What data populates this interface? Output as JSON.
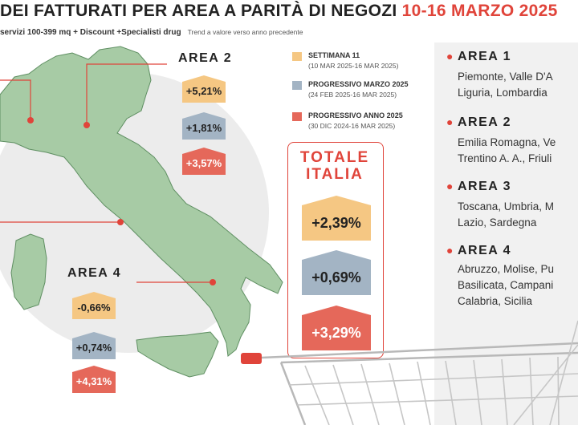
{
  "title": {
    "main": "DEI FATTURATI PER AREA A PARITÀ DI NEGOZI",
    "dates": "10-16 MARZO 2025"
  },
  "subtitle": {
    "text": "servizi 100-399 mq + Discount +Specialisti drug",
    "note": "Trend a valore verso anno precedente"
  },
  "legend": [
    {
      "title": "SETTIMANA 11",
      "sub": "(10 MAR 2025-16 MAR 2025)",
      "color": "#f5c783"
    },
    {
      "title": "PROGRESSIVO MARZO 2025",
      "sub": "(24 FEB 2025-16 MAR 2025)",
      "color": "#a3b4c4"
    },
    {
      "title": "PROGRESSIVO ANNO 2025",
      "sub": "(30 DIC 2024-16 MAR 2025)",
      "color": "#e5685a"
    }
  ],
  "map_areas": {
    "area2": {
      "label": "AREA 2",
      "settimana": "+5,21%",
      "marzo": "+1,81%",
      "anno": "+3,57%"
    },
    "area4": {
      "label": "AREA 4",
      "settimana": "-0,66%",
      "marzo": "+0,74%",
      "anno": "+4,31%"
    }
  },
  "totale": {
    "title_line1": "TOTALE",
    "title_line2": "ITALIA",
    "settimana": "+2,39%",
    "marzo": "+0,69%",
    "anno": "+3,29%"
  },
  "panel": [
    {
      "label": "AREA 1",
      "lines": [
        "Piemonte, Valle D'A",
        "Liguria, Lombardia"
      ]
    },
    {
      "label": "AREA 2",
      "lines": [
        "Emilia Romagna, Ve",
        "Trentino A. A., Friuli"
      ]
    },
    {
      "label": "AREA 3",
      "lines": [
        "Toscana, Umbria, M",
        "Lazio, Sardegna"
      ]
    },
    {
      "label": "AREA 4",
      "lines": [
        "Abruzzo, Molise, Pu",
        "Basilicata, Campani",
        "Calabria, Sicilia"
      ]
    }
  ],
  "colors": {
    "accent": "#e0443a",
    "map_green": "#a7cba5",
    "map_stroke": "#5f8f62",
    "settimana": "#f5c783",
    "marzo": "#a3b4c4",
    "anno": "#e5685a",
    "panel_bg": "#f1f1f1"
  }
}
